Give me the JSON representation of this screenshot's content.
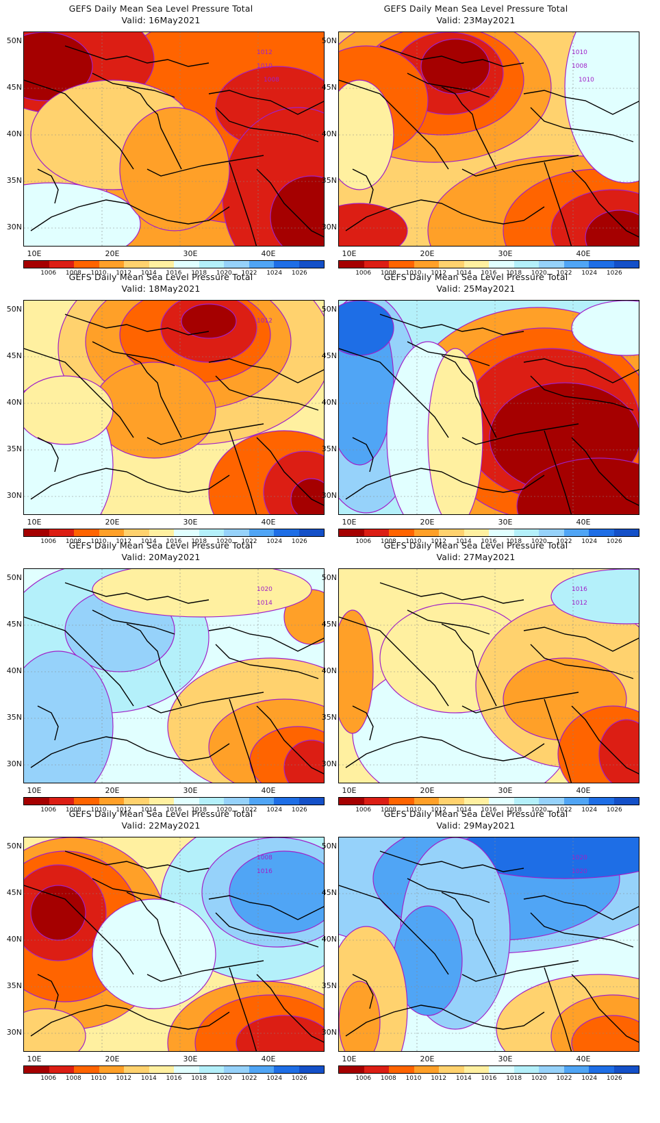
{
  "panels": [
    {
      "title": "GEFS Daily Mean Sea Level Pressure Total",
      "valid": "Valid:  16May2021",
      "theme": "low-east",
      "contour_labels": [
        "1012",
        "1010",
        "1008"
      ]
    },
    {
      "title": "GEFS Daily Mean Sea Level Pressure Total",
      "valid": "Valid:  23May2021",
      "theme": "low-north",
      "contour_labels": [
        "1010",
        "1008",
        "1010"
      ]
    },
    {
      "title": "GEFS Daily Mean Sea Level Pressure Total",
      "valid": "Valid:  18May2021",
      "theme": "mixed-low",
      "contour_labels": [
        "1012"
      ]
    },
    {
      "title": "GEFS Daily Mean Sea Level Pressure Total",
      "valid": "Valid:  25May2021",
      "theme": "high-west",
      "contour_labels": []
    },
    {
      "title": "GEFS Daily Mean Sea Level Pressure Total",
      "valid": "Valid:  20May2021",
      "theme": "high-center",
      "contour_labels": [
        "1020",
        "1014"
      ]
    },
    {
      "title": "GEFS Daily Mean Sea Level Pressure Total",
      "valid": "Valid:  27May2021",
      "theme": "neutral",
      "contour_labels": [
        "1016",
        "1012"
      ]
    },
    {
      "title": "GEFS Daily Mean Sea Level Pressure Total",
      "valid": "Valid:  22May2021",
      "theme": "low-west",
      "contour_labels": [
        "1008",
        "1016"
      ]
    },
    {
      "title": "GEFS Daily Mean Sea Level Pressure Total",
      "valid": "Valid:  29May2021",
      "theme": "high-north",
      "contour_labels": [
        "1020",
        "1020"
      ]
    }
  ],
  "lat_labels": [
    "50N",
    "45N",
    "40N",
    "35N",
    "30N"
  ],
  "lon_labels": [
    "10E",
    "20E",
    "30E",
    "40E"
  ],
  "colorbar": {
    "labels": [
      "1006",
      "1008",
      "1010",
      "1012",
      "1014",
      "1016",
      "1018",
      "1020",
      "1022",
      "1024",
      "1026"
    ],
    "colors": [
      "#a50000",
      "#dc1e14",
      "#ff6400",
      "#ffa028",
      "#ffd26e",
      "#fff0a0",
      "#e1ffff",
      "#b4f0fa",
      "#96d2fa",
      "#50a5f5",
      "#1e6ee6",
      "#1450c8"
    ]
  },
  "contour_color": "#a020c8"
}
